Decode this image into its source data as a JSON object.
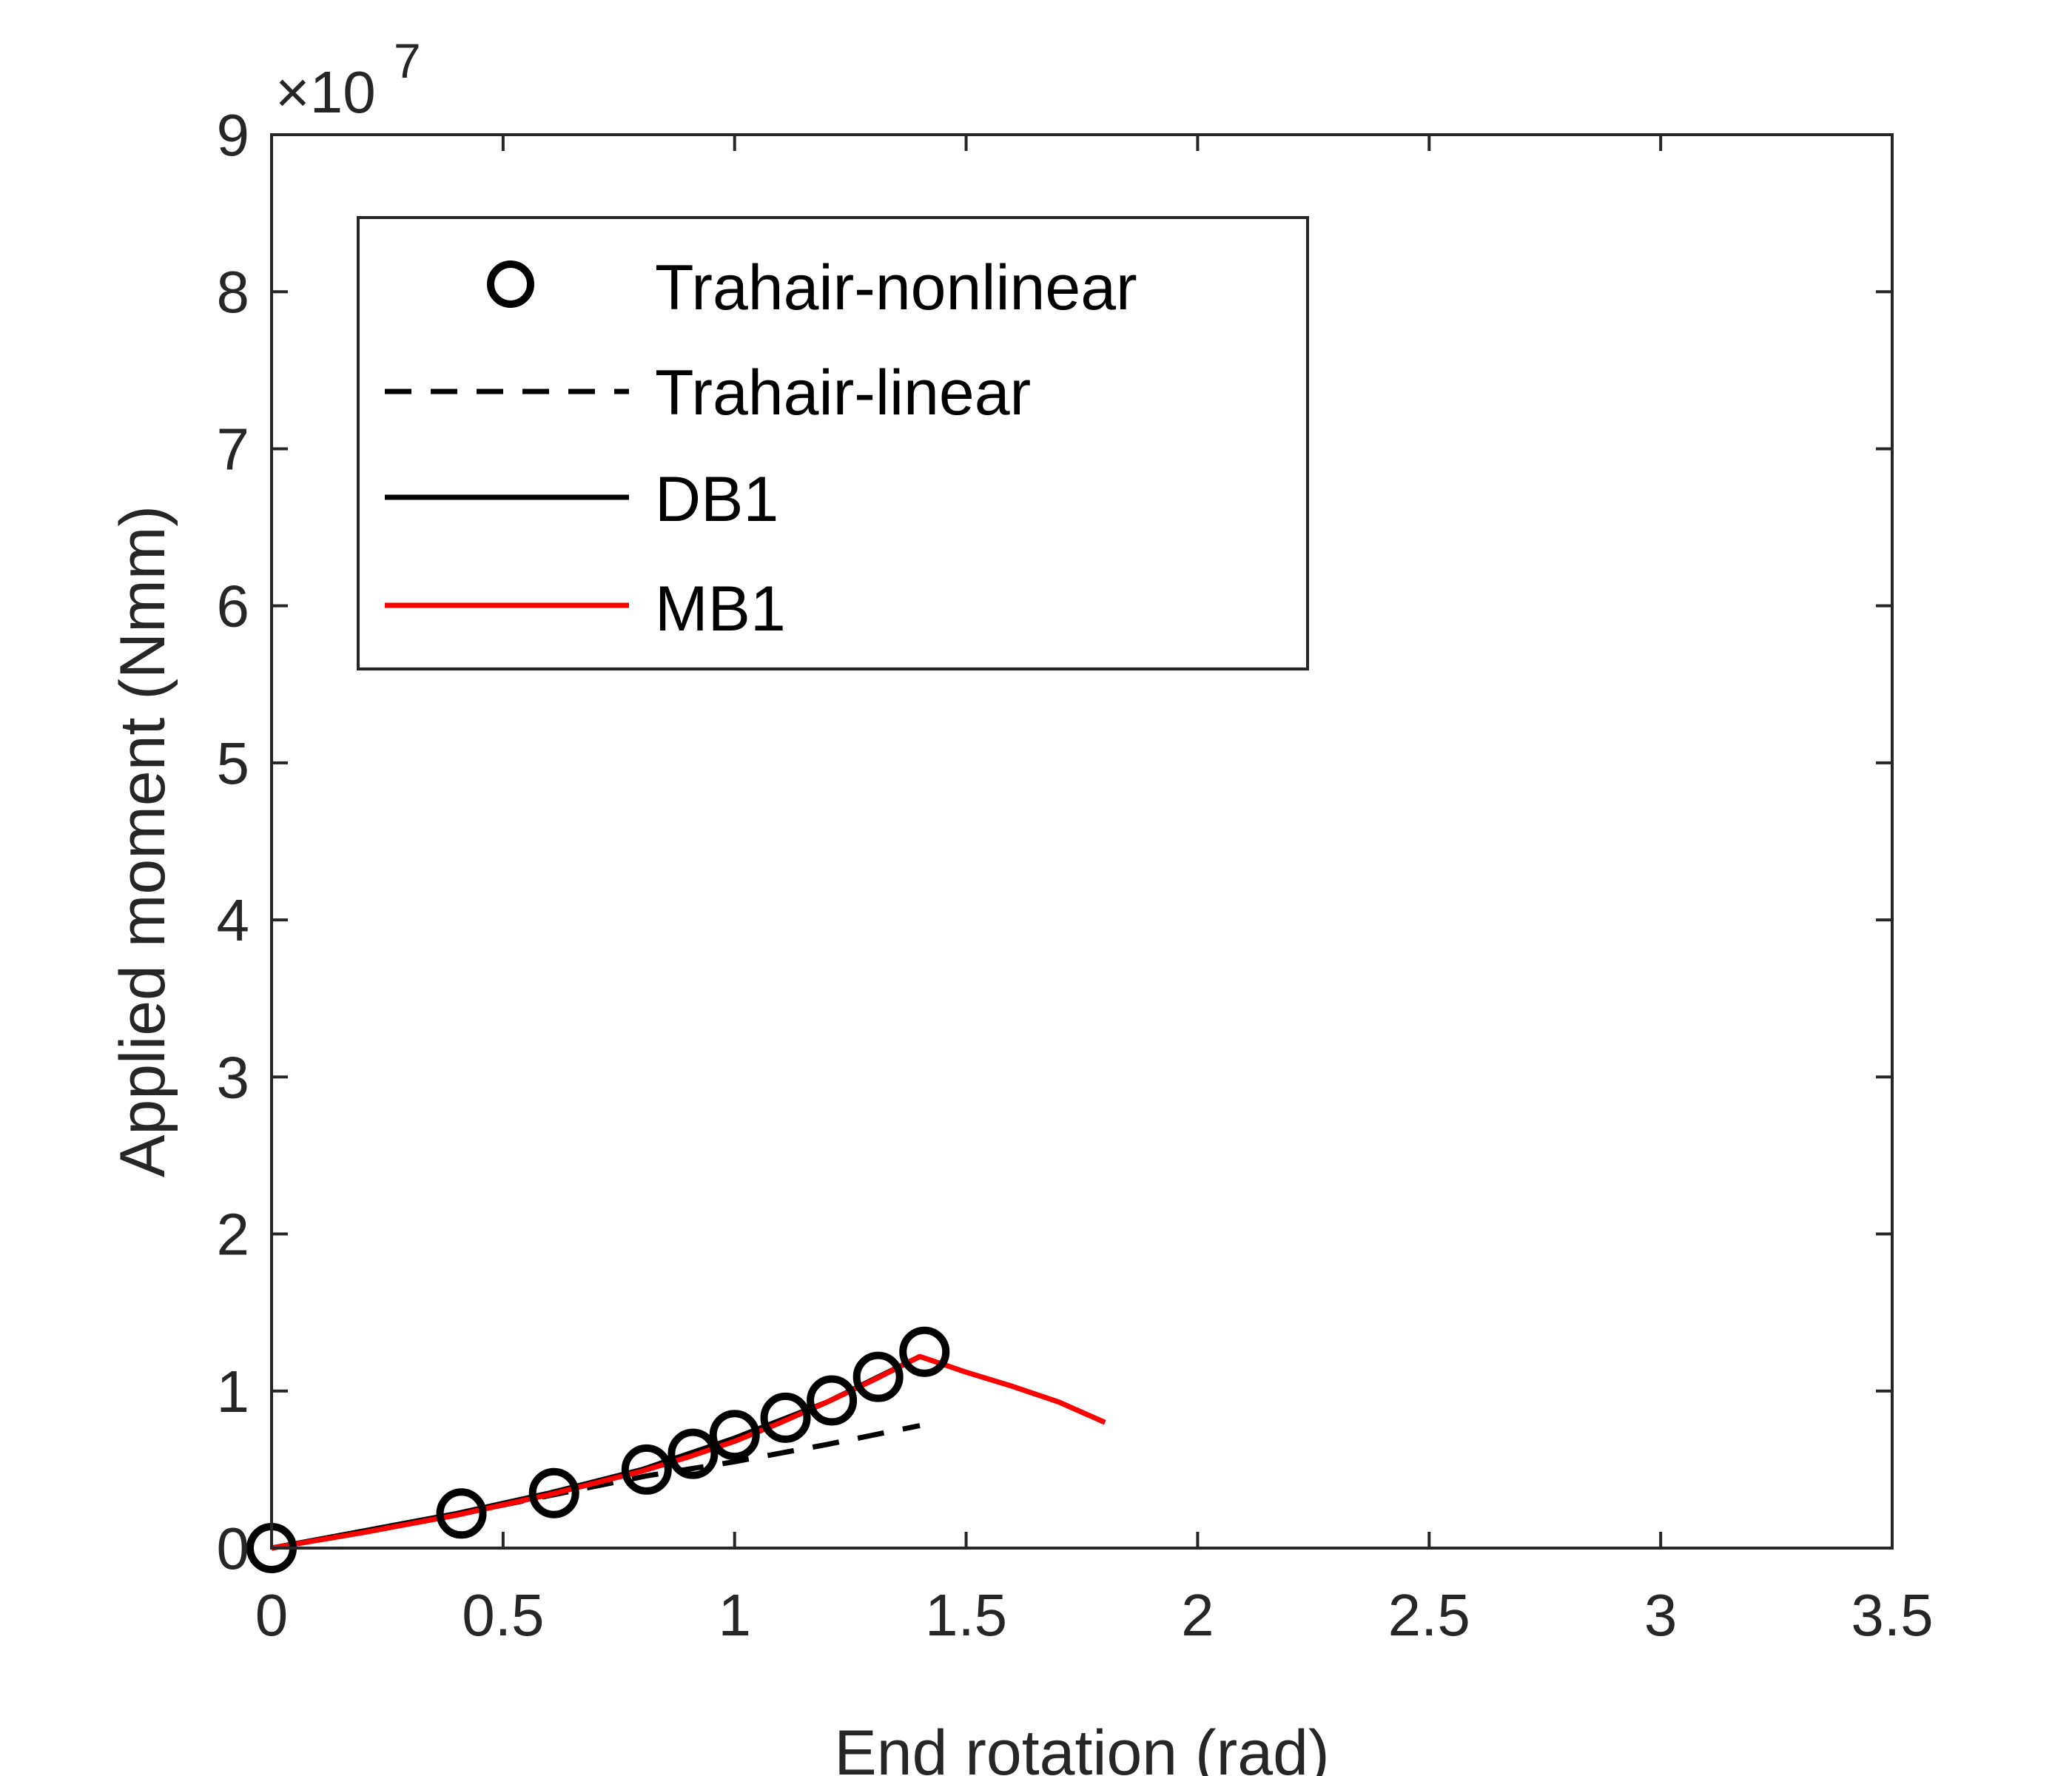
{
  "chart_data": {
    "type": "line",
    "xlabel": "End rotation (rad)",
    "ylabel": "Applied moment (Nmm)",
    "y_multiplier_label": {
      "base": "×10",
      "exponent": "7"
    },
    "xlim": [
      0,
      3.5
    ],
    "ylim": [
      0,
      9
    ],
    "x_ticks": [
      "0",
      "0.5",
      "1",
      "1.5",
      "2",
      "2.5",
      "3",
      "3.5"
    ],
    "y_ticks": [
      "0",
      "1",
      "2",
      "3",
      "4",
      "5",
      "6",
      "7",
      "8",
      "9"
    ],
    "grid": false,
    "legend_position": "top-left",
    "series": [
      {
        "name": "Trahair-nonlinear",
        "style": "markers-circle",
        "color": "#000000",
        "x": [
          0,
          0.41,
          0.61,
          0.81,
          0.91,
          1.0,
          1.11,
          1.21,
          1.31,
          1.41
        ],
        "y": [
          0,
          0.22,
          0.35,
          0.5,
          0.6,
          0.72,
          0.83,
          0.94,
          1.09,
          1.25
        ]
      },
      {
        "name": "Trahair-linear",
        "style": "dashed",
        "color": "#000000",
        "x": [
          0,
          0.41,
          0.61,
          0.81,
          1.0,
          1.2,
          1.4
        ],
        "y": [
          0,
          0.22,
          0.34,
          0.46,
          0.55,
          0.66,
          0.78
        ]
      },
      {
        "name": "DB1",
        "style": "solid",
        "color": "#000000",
        "x": [
          0,
          0.4,
          0.6,
          0.8,
          1.0,
          1.2,
          1.4
        ],
        "y": [
          0,
          0.22,
          0.35,
          0.5,
          0.7,
          0.93,
          1.22
        ]
      },
      {
        "name": "MB1",
        "style": "solid",
        "color": "#ff0000",
        "x": [
          0,
          0.2,
          0.4,
          0.6,
          0.8,
          0.9,
          1.0,
          1.1,
          1.2,
          1.3,
          1.4,
          1.42,
          1.5,
          1.6,
          1.7,
          1.8
        ],
        "y": [
          0,
          0.1,
          0.21,
          0.34,
          0.49,
          0.58,
          0.68,
          0.8,
          0.93,
          1.07,
          1.22,
          1.2,
          1.12,
          1.03,
          0.93,
          0.8
        ]
      }
    ]
  }
}
